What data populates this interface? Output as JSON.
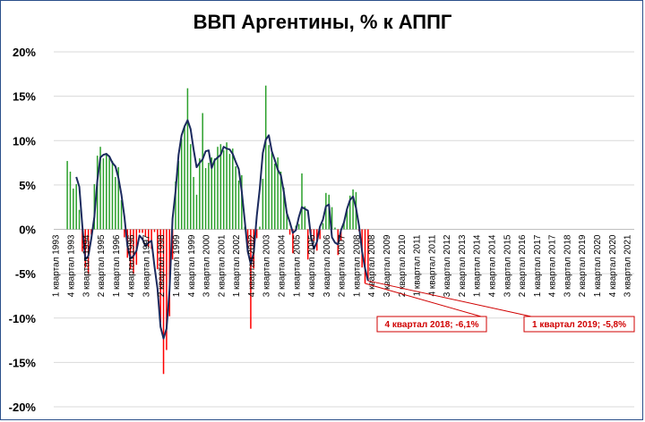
{
  "chart_data": {
    "type": "bar+line",
    "title": "ВВП Аргентины, % к АППГ",
    "ylim": [
      -20,
      20
    ],
    "y_ticks": [
      "20%",
      "15%",
      "10%",
      "5%",
      "0%",
      "-5%",
      "-10%",
      "-15%",
      "-20%"
    ],
    "x_start": "1 квартал 1993",
    "x_ticks": [
      "1 квартал 1993",
      "4 квартал 1993",
      "3 квартал 1994",
      "2 квартал 1995",
      "1 квартал 1996",
      "4 квартал 1996",
      "3 квартал 1997",
      "2 квартал 1998",
      "1 квартал 1999",
      "4 квартал 1999",
      "3 квартал 2000",
      "2 квартал 2001",
      "1 квартал 2002",
      "4 квартал 2002",
      "3 квартал 2003",
      "2 квартал 2004",
      "1 квартал 2005",
      "4 квартал 2005",
      "3 квартал 2006",
      "2 квартал 2007",
      "1 квартал 2008",
      "4 квартал 2008",
      "3 квартал 2009",
      "2 квартал 2010",
      "1 квартал 2011",
      "4 квартал 2011",
      "3 квартал 2012",
      "2 квартал 2013",
      "1 квартал 2014",
      "4 квартал 2014",
      "3 квартал 2015",
      "2 квартал 2016",
      "1 квартал 2017",
      "4 квартал 2017",
      "3 квартал 2018",
      "2 квартал 2019",
      "1 квартал 2020",
      "4 квартал 2020",
      "3 квартал 2021"
    ],
    "series": [
      {
        "values": [
          null,
          null,
          null,
          null,
          7.7,
          6.5,
          4.6,
          5.1,
          2.2,
          -2.5,
          -4.3,
          -5.0,
          -0.6,
          5.1,
          8.3,
          9.3,
          8.0,
          8.6,
          8.3,
          7.7,
          5.9,
          7.0,
          3.3,
          -0.9,
          -3.2,
          -4.5,
          -5.0,
          -4.0,
          -0.4,
          -0.4,
          -0.8,
          -2.0,
          -2.2,
          -0.3,
          -4.5,
          -10.5,
          -16.3,
          -13.6,
          -9.8,
          -3.4,
          5.4,
          7.7,
          10.2,
          11.7,
          15.9,
          9.6,
          5.9,
          3.9,
          8.0,
          13.1,
          6.9,
          7.5,
          8.1,
          8.0,
          9.3,
          9.6,
          8.9,
          9.8,
          8.5,
          9.1,
          7.1,
          5.5,
          6.1,
          0.3,
          -2.6,
          -11.2,
          -4.4,
          -1.0,
          0.3,
          5.7,
          16.2,
          9.5,
          8.6,
          7.4,
          8.1,
          6.5,
          4.7,
          1.7,
          -0.6,
          -2.7,
          0.4,
          0.6,
          6.3,
          2.6,
          -3.4,
          -0.5,
          -1.3,
          -2.4,
          -1.1,
          0.7,
          4.1,
          3.9,
          2.5,
          0.2,
          -2.9,
          -1.3,
          0.8,
          2.1,
          3.8,
          4.5,
          4.2,
          -0.2,
          -4.3,
          -6.1,
          -5.8
        ],
        "color": "#2ca02c",
        "negative_color": "#ff0000"
      },
      {
        "values": [
          null,
          null,
          null,
          null,
          null,
          null,
          null,
          5.9,
          4.8,
          0.4,
          -3.4,
          -3.0,
          -1.0,
          1.4,
          5.5,
          8.1,
          8.4,
          8.5,
          8.2,
          7.5,
          7.1,
          5.8,
          3.9,
          1.4,
          -1.9,
          -3.3,
          -3.0,
          -2.4,
          -0.7,
          -1.1,
          -1.9,
          -1.5,
          -1.3,
          -4.2,
          -6.7,
          -11.0,
          -12.3,
          -11.2,
          -6.8,
          1.2,
          4.3,
          8.4,
          10.6,
          11.6,
          12.3,
          11.3,
          9.0,
          7.0,
          7.5,
          7.9,
          8.8,
          8.9,
          6.9,
          7.8,
          8.1,
          8.4,
          9.3,
          9.1,
          9.0,
          8.5,
          7.6,
          6.8,
          4.3,
          1.0,
          -2.5,
          -3.9,
          -2.6,
          1.5,
          4.6,
          8.6,
          10.1,
          10.6,
          8.8,
          7.8,
          6.7,
          6.1,
          4.2,
          1.8,
          0.8,
          -0.4,
          -0.1,
          1.4,
          2.5,
          2.3,
          2.1,
          -0.8,
          -2.2,
          -1.4,
          0.3,
          1.1,
          2.6,
          2.8,
          -0.9,
          -1.5,
          -1.7,
          -0.1,
          0.8,
          2.3,
          3.3,
          3.7,
          2.4,
          0.4,
          -2.5,
          -4.4,
          -5.8
        ],
        "color": "#1b2a5e"
      }
    ],
    "annotations": [
      {
        "text": "4 квартал 2018; -6,1%",
        "color": "#d00000"
      },
      {
        "text": "1 квартал 2019; -5,8%",
        "color": "#d00000"
      }
    ],
    "grid": "horizontal",
    "legend": "none"
  }
}
